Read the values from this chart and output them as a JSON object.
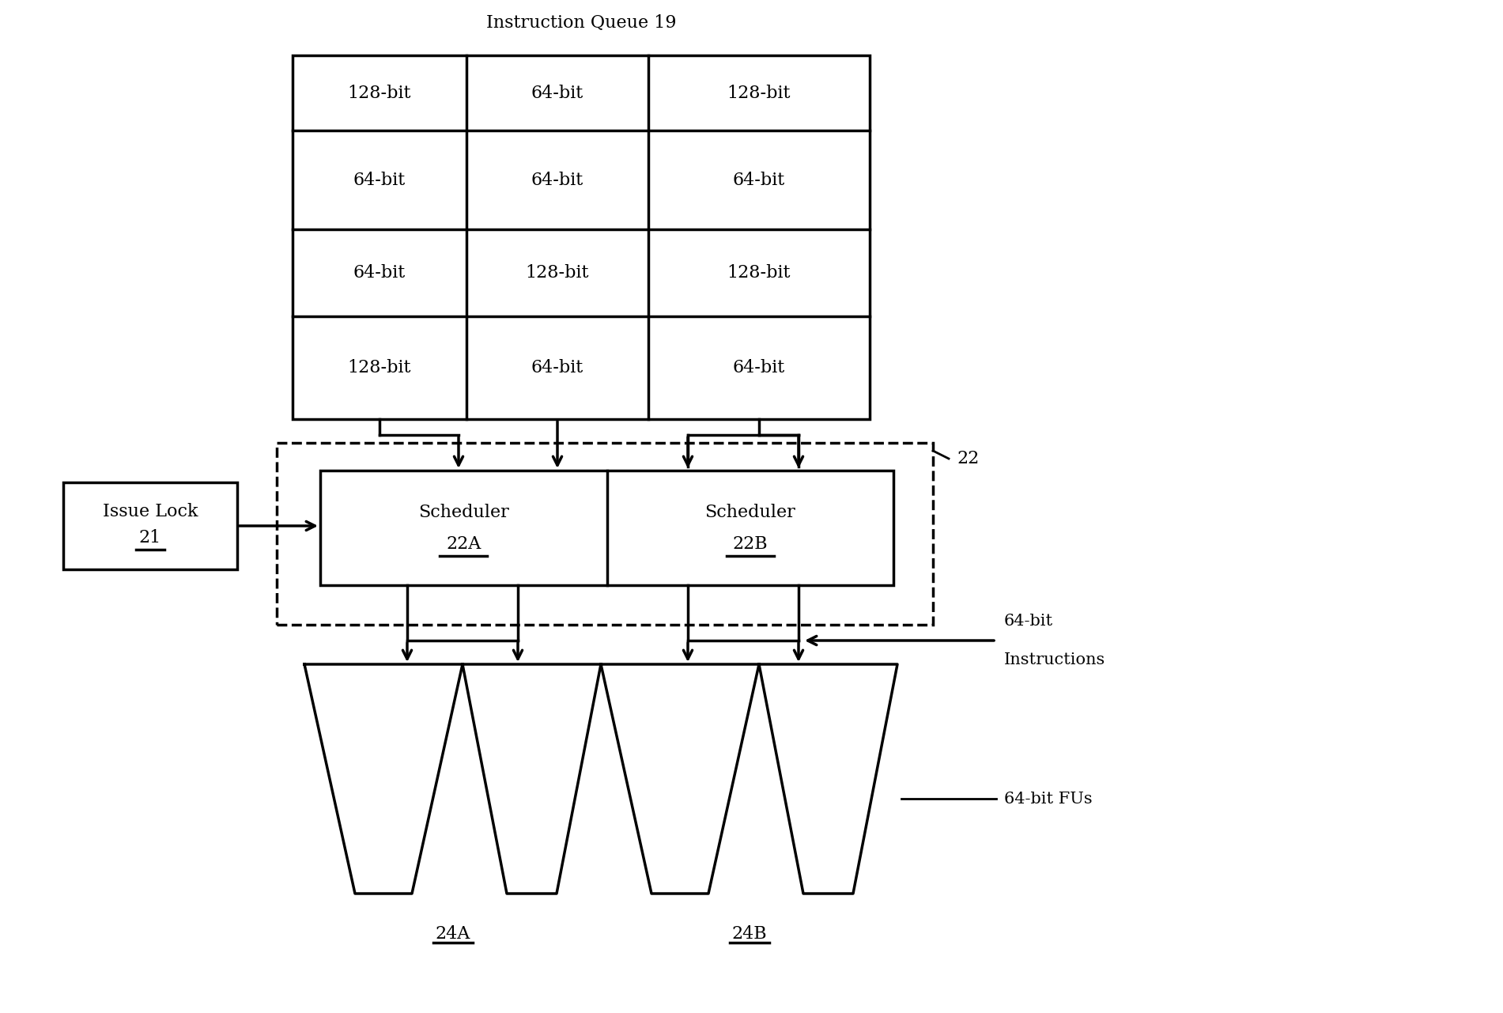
{
  "title": "Instruction Queue 19",
  "table_cells": [
    [
      "128-bit",
      "64-bit",
      "128-bit"
    ],
    [
      "64-bit",
      "64-bit",
      "64-bit"
    ],
    [
      "64-bit",
      "128-bit",
      "128-bit"
    ],
    [
      "128-bit",
      "64-bit",
      "64-bit"
    ]
  ],
  "label_22": "22",
  "annotation_64bit_instr": "64-bit\nInstructions",
  "annotation_64bit_fus": "64-bit FUs",
  "bg_color": "#ffffff",
  "line_color": "#000000",
  "font_size": 16
}
